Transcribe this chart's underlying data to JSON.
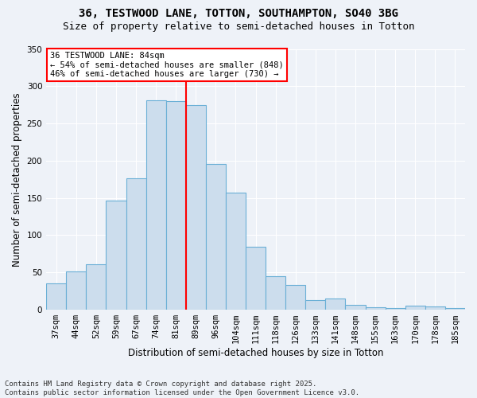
{
  "title_line1": "36, TESTWOOD LANE, TOTTON, SOUTHAMPTON, SO40 3BG",
  "title_line2": "Size of property relative to semi-detached houses in Totton",
  "xlabel": "Distribution of semi-detached houses by size in Totton",
  "ylabel": "Number of semi-detached properties",
  "footnote": "Contains HM Land Registry data © Crown copyright and database right 2025.\nContains public sector information licensed under the Open Government Licence v3.0.",
  "categories": [
    "37sqm",
    "44sqm",
    "52sqm",
    "59sqm",
    "67sqm",
    "74sqm",
    "81sqm",
    "89sqm",
    "96sqm",
    "104sqm",
    "111sqm",
    "118sqm",
    "126sqm",
    "133sqm",
    "141sqm",
    "148sqm",
    "155sqm",
    "163sqm",
    "170sqm",
    "178sqm",
    "185sqm"
  ],
  "values": [
    35,
    51,
    61,
    146,
    176,
    281,
    280,
    275,
    196,
    157,
    84,
    45,
    33,
    13,
    15,
    7,
    3,
    2,
    5,
    4,
    2
  ],
  "bar_color": "#ccdded",
  "bar_edge_color": "#6aafd6",
  "vline_color": "red",
  "vline_x": 6.5,
  "annotation_title": "36 TESTWOOD LANE: 84sqm",
  "annotation_line1": "← 54% of semi-detached houses are smaller (848)",
  "annotation_line2": "46% of semi-detached houses are larger (730) →",
  "annotation_box_color": "white",
  "annotation_box_edge": "red",
  "ylim": [
    0,
    350
  ],
  "yticks": [
    0,
    50,
    100,
    150,
    200,
    250,
    300,
    350
  ],
  "background_color": "#eef2f8",
  "grid_color": "#ffffff",
  "title_fontsize": 10,
  "subtitle_fontsize": 9,
  "axis_label_fontsize": 8.5,
  "tick_fontsize": 7.5,
  "annotation_fontsize": 7.5,
  "footnote_fontsize": 6.5
}
